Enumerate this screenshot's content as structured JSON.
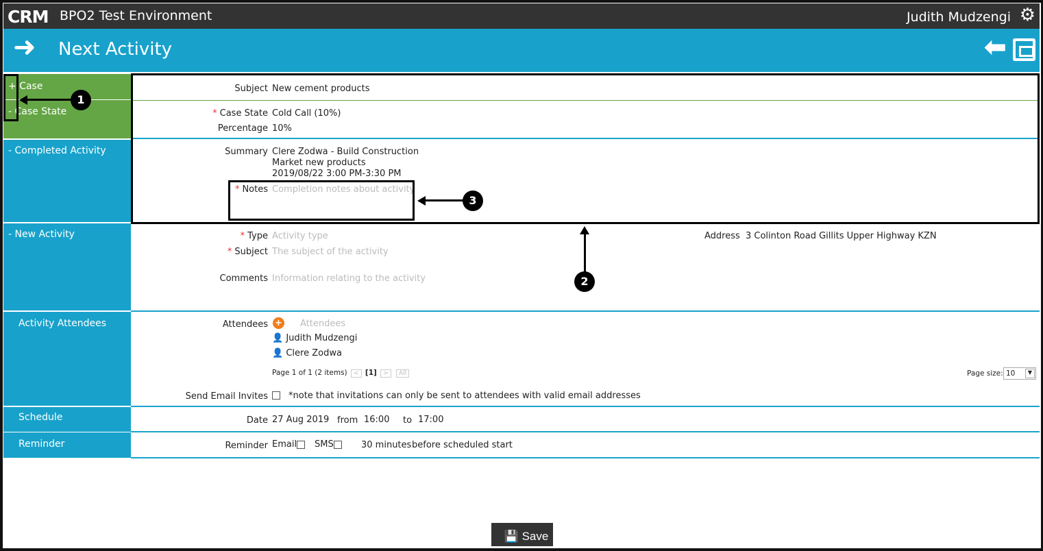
{
  "app": {
    "logo": "CRM",
    "environment": "BPO2 Test Environment",
    "user": "Judith Mudzengi"
  },
  "header": {
    "title": "Next Activity"
  },
  "sections": {
    "case": {
      "toggle": "+",
      "label": "Case",
      "subject_label": "Subject",
      "subject": "New cement products"
    },
    "case_state": {
      "toggle": "-",
      "label": "Case State",
      "state_label": "Case State",
      "state": "Cold Call (10%)",
      "percentage_label": "Percentage",
      "percentage": "10%"
    },
    "completed": {
      "toggle": "-",
      "label": "Completed Activity",
      "summary_label": "Summary",
      "summary": [
        "Clere Zodwa - Build Construction",
        "Market new products",
        "2019/08/22 3:00 PM-3:30 PM"
      ],
      "notes_label": "Notes",
      "notes_placeholder": "Completion notes about activity"
    },
    "new": {
      "toggle": "-",
      "label": "New Activity",
      "type_label": "Type",
      "type_placeholder": "Activity type",
      "subject_label": "Subject",
      "subject_placeholder": "The subject of the activity",
      "comments_label": "Comments",
      "comments_placeholder": "Information relating to the activity",
      "address_label": "Address",
      "address": "3 Colinton Road Gillits Upper Highway KZN"
    },
    "attendees": {
      "label": "Activity Attendees",
      "field_label": "Attendees",
      "placeholder": "Attendees",
      "list": [
        "Judith Mudzengi",
        "Clere Zodwa"
      ],
      "pager": "Page 1 of 1 (2 items)",
      "prev": "<",
      "current": "[1]",
      "next": ">",
      "all": "All",
      "page_size_label": "Page size:",
      "page_size": "10",
      "send_label": "Send Email Invites",
      "send_note": "*note that invitations can only be sent to attendees with valid email addresses"
    },
    "schedule": {
      "label": "Schedule",
      "date_label": "Date",
      "date": "27 Aug 2019",
      "from": "from",
      "start": "16:00",
      "to": "to",
      "end": "17:00"
    },
    "reminder": {
      "label": "Reminder",
      "field_label": "Reminder",
      "email": "Email",
      "sms": "SMS",
      "minutes": "30 minutes",
      "suffix": "before scheduled start"
    }
  },
  "footer": {
    "save": "Save"
  },
  "annotations": [
    "1",
    "2",
    "3"
  ],
  "colors": {
    "topbar": "#333333",
    "accent": "#18a2cb",
    "case_green": "#64a545",
    "required": "#ee3333",
    "add": "#f07d1a"
  }
}
